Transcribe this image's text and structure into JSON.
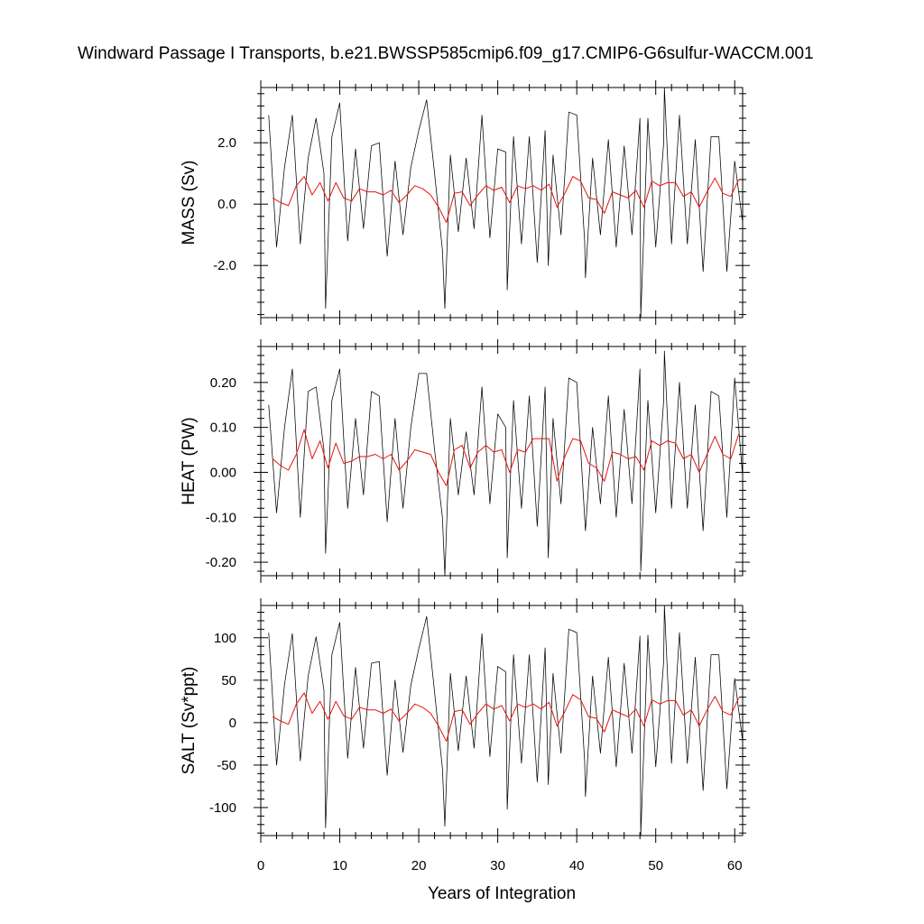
{
  "chart_data": [
    {
      "type": "line",
      "title": "Windward Passage I Transports, b.e21.BWSSP585cmip6.f09_g17.CMIP6-G6sulfur-WACCM.001",
      "ylabel": "MASS (Sv)",
      "xlim": [
        0,
        61
      ],
      "ylim": [
        -3.7,
        3.8
      ],
      "yticks": [
        -2.0,
        0.0,
        2.0
      ],
      "ytick_labels": [
        "-2.0",
        "0.0",
        "2.0"
      ],
      "yminor_step": 0.4,
      "series": [
        {
          "color": "#000000",
          "style": "monthly",
          "x": [
            1,
            2,
            3,
            4,
            5,
            6,
            7,
            8,
            8.2,
            9,
            10,
            11,
            12,
            13,
            14,
            15,
            16,
            17,
            18,
            19,
            20,
            21,
            22,
            23,
            23.3,
            24,
            25,
            26,
            27,
            28,
            29,
            30,
            31,
            31.2,
            32,
            33,
            34,
            35,
            36,
            36.4,
            37,
            38,
            39,
            40,
            41,
            41.1,
            42,
            43,
            44,
            45,
            46,
            47,
            48,
            48.1,
            49,
            50,
            51,
            51.1,
            52,
            53,
            54,
            55,
            56,
            57,
            58,
            59,
            60,
            61
          ],
          "y": [
            2.9,
            -1.4,
            1.2,
            2.9,
            -1.3,
            1.5,
            2.8,
            1.0,
            -3.4,
            2.2,
            3.3,
            -1.2,
            1.8,
            -0.8,
            1.9,
            2.0,
            -1.7,
            1.4,
            -1.0,
            1.2,
            2.4,
            3.4,
            1.0,
            -1.5,
            -3.4,
            1.6,
            -0.9,
            1.5,
            -0.8,
            2.9,
            -1.1,
            1.8,
            1.7,
            -2.8,
            2.2,
            -1.3,
            2.2,
            -1.9,
            2.4,
            -2.0,
            1.6,
            -1.0,
            3.0,
            2.9,
            -1.2,
            -2.4,
            1.5,
            -1.0,
            2.1,
            -1.4,
            1.9,
            -1.0,
            2.8,
            -3.7,
            2.8,
            -1.4,
            2.0,
            3.8,
            -1.3,
            2.9,
            -1.3,
            2.1,
            -2.2,
            2.2,
            2.2,
            -2.2,
            1.4,
            -0.6
          ]
        },
        {
          "color": "#e3140e",
          "style": "annual",
          "x": [
            1.5,
            2.5,
            3.5,
            4.5,
            5.5,
            6.5,
            7.5,
            8.5,
            9.5,
            10.5,
            11.5,
            12.5,
            13.5,
            14.5,
            15.5,
            16.5,
            17.5,
            18.5,
            19.5,
            20.5,
            21.5,
            22.5,
            23.5,
            24.5,
            25.5,
            26.5,
            27.5,
            28.5,
            29.5,
            30.5,
            31.5,
            32.5,
            33.5,
            34.5,
            35.5,
            36.5,
            37.5,
            38.5,
            39.5,
            40.5,
            41.5,
            42.5,
            43.5,
            44.5,
            45.5,
            46.5,
            47.5,
            48.5,
            49.5,
            50.5,
            51.5,
            52.5,
            53.5,
            54.5,
            55.5,
            56.5,
            57.5,
            58.5,
            59.5,
            60.5
          ],
          "y": [
            0.2,
            0.05,
            -0.05,
            0.6,
            0.9,
            0.3,
            0.7,
            0.1,
            0.7,
            0.2,
            0.1,
            0.5,
            0.4,
            0.4,
            0.3,
            0.45,
            0.05,
            0.3,
            0.6,
            0.5,
            0.3,
            -0.1,
            -0.6,
            0.35,
            0.4,
            -0.05,
            0.3,
            0.6,
            0.45,
            0.55,
            0.05,
            0.6,
            0.5,
            0.6,
            0.45,
            0.65,
            -0.1,
            0.35,
            0.9,
            0.75,
            0.2,
            0.15,
            -0.3,
            0.4,
            0.3,
            0.2,
            0.45,
            -0.1,
            0.75,
            0.6,
            0.7,
            0.7,
            0.25,
            0.4,
            -0.1,
            0.4,
            0.85,
            0.35,
            0.25,
            0.8
          ]
        }
      ]
    },
    {
      "type": "line",
      "ylabel": "HEAT (PW)",
      "xlim": [
        0,
        61
      ],
      "ylim": [
        -0.23,
        0.28
      ],
      "yticks": [
        -0.2,
        -0.1,
        0.0,
        0.1,
        0.2
      ],
      "ytick_labels": [
        "-0.20",
        "-0.10",
        "0.00",
        "0.10",
        "0.20"
      ],
      "yminor_step": 0.02,
      "series": [
        {
          "color": "#000000",
          "style": "monthly",
          "x": [
            1,
            2,
            3,
            4,
            5,
            6,
            7,
            8,
            8.2,
            9,
            10,
            11,
            12,
            13,
            14,
            15,
            16,
            17,
            18,
            19,
            20,
            21,
            22,
            23,
            23.3,
            24,
            25,
            26,
            27,
            28,
            29,
            30,
            31,
            31.2,
            32,
            33,
            34,
            35,
            36,
            36.4,
            37,
            38,
            39,
            40,
            41,
            41.1,
            42,
            43,
            44,
            45,
            46,
            47,
            48,
            48.1,
            49,
            50,
            51,
            51.1,
            52,
            53,
            54,
            55,
            56,
            57,
            58,
            59,
            60,
            61
          ],
          "y": [
            0.15,
            -0.09,
            0.1,
            0.23,
            -0.1,
            0.18,
            0.19,
            0.05,
            -0.18,
            0.16,
            0.23,
            -0.08,
            0.12,
            -0.05,
            0.18,
            0.17,
            -0.11,
            0.12,
            -0.08,
            0.1,
            0.22,
            0.22,
            0.05,
            -0.1,
            -0.23,
            0.12,
            -0.05,
            0.09,
            -0.05,
            0.19,
            -0.07,
            0.13,
            0.1,
            -0.19,
            0.16,
            -0.08,
            0.17,
            -0.12,
            0.19,
            -0.19,
            0.12,
            -0.07,
            0.21,
            0.2,
            -0.1,
            -0.13,
            0.1,
            -0.07,
            0.17,
            -0.1,
            0.14,
            -0.07,
            0.23,
            -0.22,
            0.16,
            -0.09,
            0.16,
            0.27,
            -0.08,
            0.2,
            -0.08,
            0.15,
            -0.13,
            0.18,
            0.17,
            -0.1,
            0.21,
            -0.01
          ]
        },
        {
          "color": "#e3140e",
          "style": "annual",
          "x": [
            1.5,
            2.5,
            3.5,
            4.5,
            5.5,
            6.5,
            7.5,
            8.5,
            9.5,
            10.5,
            11.5,
            12.5,
            13.5,
            14.5,
            15.5,
            16.5,
            17.5,
            18.5,
            19.5,
            20.5,
            21.5,
            22.5,
            23.5,
            24.5,
            25.5,
            26.5,
            27.5,
            28.5,
            29.5,
            30.5,
            31.5,
            32.5,
            33.5,
            34.5,
            35.5,
            36.5,
            37.5,
            38.5,
            39.5,
            40.5,
            41.5,
            42.5,
            43.5,
            44.5,
            45.5,
            46.5,
            47.5,
            48.5,
            49.5,
            50.5,
            51.5,
            52.5,
            53.5,
            54.5,
            55.5,
            56.5,
            57.5,
            58.5,
            59.5,
            60.5
          ],
          "y": [
            0.03,
            0.015,
            0.005,
            0.04,
            0.095,
            0.03,
            0.07,
            0.01,
            0.065,
            0.02,
            0.025,
            0.035,
            0.035,
            0.04,
            0.03,
            0.04,
            0.005,
            0.025,
            0.05,
            0.045,
            0.04,
            0.0,
            -0.03,
            0.05,
            0.06,
            0.01,
            0.045,
            0.06,
            0.045,
            0.05,
            0.0,
            0.05,
            0.045,
            0.075,
            0.075,
            0.075,
            -0.02,
            0.035,
            0.075,
            0.07,
            0.02,
            0.01,
            -0.02,
            0.045,
            0.04,
            0.03,
            0.035,
            0.005,
            0.07,
            0.06,
            0.07,
            0.065,
            0.03,
            0.04,
            0.0,
            0.04,
            0.08,
            0.04,
            0.03,
            0.085
          ]
        }
      ]
    },
    {
      "type": "line",
      "ylabel": "SALT (Sv*ppt)",
      "xlabel": "Years of Integration",
      "xlim": [
        0,
        61
      ],
      "ylim": [
        -133,
        138
      ],
      "xticks": [
        0,
        10,
        20,
        30,
        40,
        50,
        60
      ],
      "xtick_labels": [
        "0",
        "10",
        "20",
        "30",
        "40",
        "50",
        "60"
      ],
      "xminor_step": 2,
      "yticks": [
        -100,
        -50,
        0,
        50,
        100
      ],
      "ytick_labels": [
        "-100",
        "-50",
        "0",
        "50",
        "100"
      ],
      "yminor_step": 10,
      "series": [
        {
          "color": "#000000",
          "style": "monthly",
          "x": [
            1,
            2,
            3,
            4,
            5,
            6,
            7,
            8,
            8.2,
            9,
            10,
            11,
            12,
            13,
            14,
            15,
            16,
            17,
            18,
            19,
            20,
            21,
            22,
            23,
            23.3,
            24,
            25,
            26,
            27,
            28,
            29,
            30,
            31,
            31.2,
            32,
            33,
            34,
            35,
            36,
            36.4,
            37,
            38,
            39,
            40,
            41,
            41.1,
            42,
            43,
            44,
            45,
            46,
            47,
            48,
            48.1,
            49,
            50,
            51,
            51.1,
            52,
            53,
            54,
            55,
            56,
            57,
            58,
            59,
            60,
            61
          ],
          "y": [
            106,
            -50,
            45,
            105,
            -45,
            55,
            101,
            38,
            -124,
            80,
            118,
            -42,
            65,
            -30,
            70,
            72,
            -62,
            50,
            -35,
            44,
            87,
            125,
            36,
            -54,
            -122,
            58,
            -33,
            55,
            -30,
            105,
            -40,
            66,
            60,
            -102,
            80,
            -48,
            80,
            -70,
            88,
            -73,
            58,
            -36,
            110,
            106,
            -45,
            -87,
            55,
            -36,
            77,
            -52,
            70,
            -36,
            102,
            -133,
            103,
            -52,
            72,
            138,
            -48,
            106,
            -48,
            77,
            -80,
            80,
            80,
            -78,
            52,
            -22
          ]
        },
        {
          "color": "#e3140e",
          "style": "annual",
          "x": [
            1.5,
            2.5,
            3.5,
            4.5,
            5.5,
            6.5,
            7.5,
            8.5,
            9.5,
            10.5,
            11.5,
            12.5,
            13.5,
            14.5,
            15.5,
            16.5,
            17.5,
            18.5,
            19.5,
            20.5,
            21.5,
            22.5,
            23.5,
            24.5,
            25.5,
            26.5,
            27.5,
            28.5,
            29.5,
            30.5,
            31.5,
            32.5,
            33.5,
            34.5,
            35.5,
            36.5,
            37.5,
            38.5,
            39.5,
            40.5,
            41.5,
            42.5,
            43.5,
            44.5,
            45.5,
            46.5,
            47.5,
            48.5,
            49.5,
            50.5,
            51.5,
            52.5,
            53.5,
            54.5,
            55.5,
            56.5,
            57.5,
            58.5,
            59.5,
            60.5
          ],
          "y": [
            7,
            2,
            -2,
            22,
            35,
            11,
            25,
            4,
            25,
            8,
            4,
            18,
            15,
            15,
            11,
            16,
            2,
            11,
            22,
            18,
            11,
            -4,
            -22,
            13,
            15,
            -2,
            11,
            22,
            16,
            20,
            2,
            22,
            18,
            22,
            16,
            24,
            -4,
            13,
            33,
            27,
            7,
            5,
            -11,
            15,
            11,
            7,
            16,
            -4,
            27,
            22,
            26,
            26,
            9,
            15,
            -4,
            15,
            31,
            13,
            9,
            29
          ]
        }
      ]
    }
  ]
}
